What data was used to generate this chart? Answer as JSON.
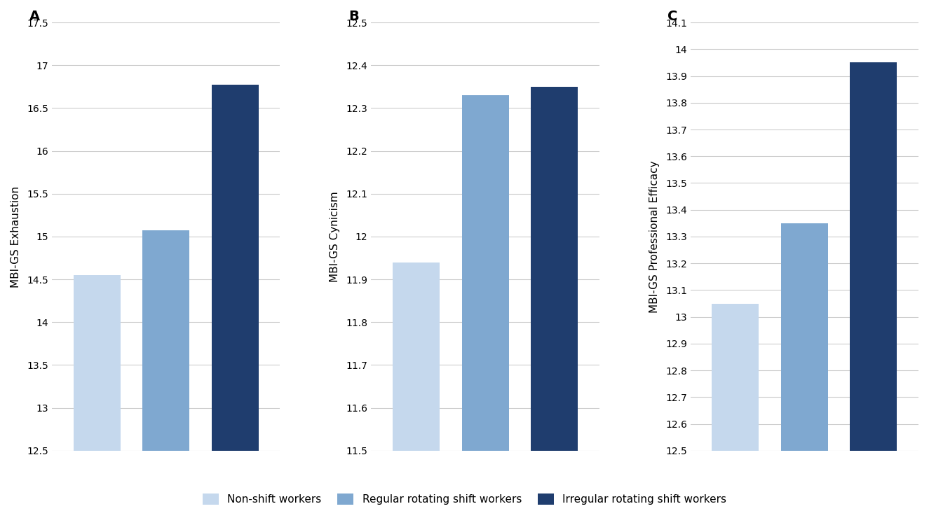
{
  "panels": [
    {
      "label": "A",
      "ylabel": "MBI-GS Exhaustion",
      "values": [
        14.55,
        15.07,
        16.77
      ],
      "ylim": [
        12.5,
        17.5
      ],
      "yticks": [
        12.5,
        13.0,
        13.5,
        14.0,
        14.5,
        15.0,
        15.5,
        16.0,
        16.5,
        17.0,
        17.5
      ],
      "yticklabels": [
        "12.5",
        "13",
        "13.5",
        "14",
        "14.5",
        "15",
        "15.5",
        "16",
        "16.5",
        "17",
        "17.5"
      ]
    },
    {
      "label": "B",
      "ylabel": "MBI-GS Cynicism",
      "values": [
        11.94,
        12.33,
        12.35
      ],
      "ylim": [
        11.5,
        12.5
      ],
      "yticks": [
        11.5,
        11.6,
        11.7,
        11.8,
        11.9,
        12.0,
        12.1,
        12.2,
        12.3,
        12.4,
        12.5
      ],
      "yticklabels": [
        "11.5",
        "11.6",
        "11.7",
        "11.8",
        "11.9",
        "12",
        "12.1",
        "12.2",
        "12.3",
        "12.4",
        "12.5"
      ]
    },
    {
      "label": "C",
      "ylabel": "MBI-GS Professional Efficacy",
      "values": [
        13.05,
        13.35,
        13.95
      ],
      "ylim": [
        12.5,
        14.1
      ],
      "yticks": [
        12.5,
        12.6,
        12.7,
        12.8,
        12.9,
        13.0,
        13.1,
        13.2,
        13.3,
        13.4,
        13.5,
        13.6,
        13.7,
        13.8,
        13.9,
        14.0,
        14.1
      ],
      "yticklabels": [
        "12.5",
        "12.6",
        "12.7",
        "12.8",
        "12.9",
        "13",
        "13.1",
        "13.2",
        "13.3",
        "13.4",
        "13.5",
        "13.6",
        "13.7",
        "13.8",
        "13.9",
        "14",
        "14.1"
      ]
    }
  ],
  "legend_labels": [
    "Non-shift workers",
    "Regular rotating shift workers",
    "Irregular rotating shift workers"
  ],
  "bar_colors": [
    "#c5d8ed",
    "#7fa8d0",
    "#1f3d6e"
  ],
  "background_color": "#ffffff",
  "panel_bg_color": "#ffffff",
  "grid_color": "#cccccc",
  "ylabel_fontsize": 11,
  "tick_fontsize": 10,
  "legend_fontsize": 11,
  "panel_label_fontsize": 14
}
